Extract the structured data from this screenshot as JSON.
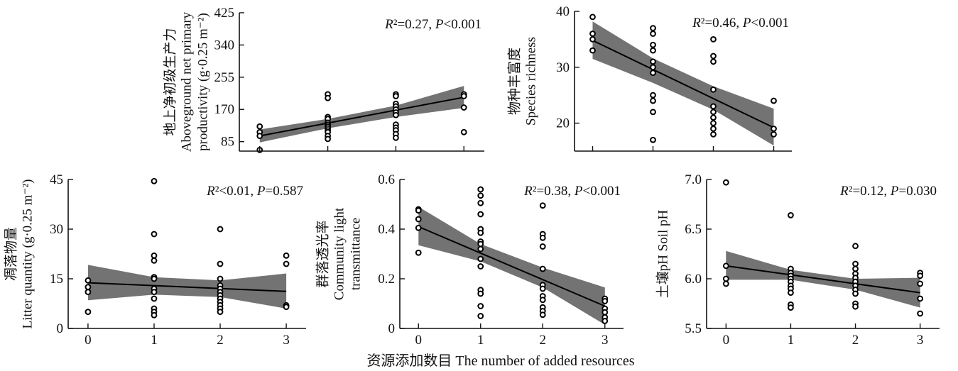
{
  "figure": {
    "xlabel": "资源添加数目 The number of added resources"
  },
  "chart_data": [
    {
      "type": "scatter",
      "key": "anpp",
      "ylabel_lines": [
        "地上净初级生产力",
        "Aboveground net primary",
        "productivity (g·0.25 m⁻²)"
      ],
      "stat_text": "R²=0.27, P<0.001",
      "x_ticks": [
        0,
        1,
        2,
        3
      ],
      "x_tick_labels": [],
      "y_ticks": [
        85,
        170,
        255,
        340,
        425
      ],
      "xlim": [
        -0.3,
        3.3
      ],
      "ylim": [
        60,
        425
      ],
      "points": [
        [
          0,
          125
        ],
        [
          0,
          110
        ],
        [
          0,
          100
        ],
        [
          0,
          63
        ],
        [
          1,
          210
        ],
        [
          1,
          200
        ],
        [
          1,
          150
        ],
        [
          1,
          145
        ],
        [
          1,
          135
        ],
        [
          1,
          130
        ],
        [
          1,
          125
        ],
        [
          1,
          120
        ],
        [
          1,
          115
        ],
        [
          1,
          110
        ],
        [
          1,
          100
        ],
        [
          1,
          92
        ],
        [
          2,
          210
        ],
        [
          2,
          205
        ],
        [
          2,
          185
        ],
        [
          2,
          178
        ],
        [
          2,
          170
        ],
        [
          2,
          162
        ],
        [
          2,
          155
        ],
        [
          2,
          130
        ],
        [
          2,
          122
        ],
        [
          2,
          115
        ],
        [
          2,
          105
        ],
        [
          2,
          95
        ],
        [
          3,
          210
        ],
        [
          3,
          205
        ],
        [
          3,
          175
        ],
        [
          3,
          110
        ]
      ],
      "fit": [
        [
          0,
          100
        ],
        [
          3,
          202
        ]
      ],
      "ci_lower": [
        [
          0,
          83
        ],
        [
          1,
          120
        ],
        [
          2,
          150
        ],
        [
          3,
          174
        ]
      ],
      "ci_upper": [
        [
          0,
          117
        ],
        [
          1,
          145
        ],
        [
          2,
          180
        ],
        [
          3,
          232
        ]
      ]
    },
    {
      "type": "scatter",
      "key": "richness",
      "ylabel_lines": [
        "物种丰富度",
        "Species richness"
      ],
      "stat_text": "R²=0.46, P<0.001",
      "x_ticks": [
        0,
        1,
        2,
        3
      ],
      "x_tick_labels": [],
      "y_ticks": [
        20,
        30,
        40
      ],
      "xlim": [
        -0.3,
        3.3
      ],
      "ylim": [
        15,
        40
      ],
      "points": [
        [
          0,
          39
        ],
        [
          0,
          36
        ],
        [
          0,
          35
        ],
        [
          0,
          33
        ],
        [
          1,
          37
        ],
        [
          1,
          36
        ],
        [
          1,
          34
        ],
        [
          1,
          33
        ],
        [
          1,
          31
        ],
        [
          1,
          30
        ],
        [
          1,
          29
        ],
        [
          1,
          25
        ],
        [
          1,
          24
        ],
        [
          1,
          22
        ],
        [
          1,
          17
        ],
        [
          2,
          35
        ],
        [
          2,
          32
        ],
        [
          2,
          31
        ],
        [
          2,
          26
        ],
        [
          2,
          23
        ],
        [
          2,
          22
        ],
        [
          2,
          21
        ],
        [
          2,
          20
        ],
        [
          2,
          19
        ],
        [
          2,
          18
        ],
        [
          3,
          24
        ],
        [
          3,
          19
        ],
        [
          3,
          18
        ]
      ],
      "fit": [
        [
          0,
          34.8
        ],
        [
          3,
          19.2
        ]
      ],
      "ci_lower": [
        [
          0,
          31.5
        ],
        [
          1,
          27.2
        ],
        [
          2,
          22.4
        ],
        [
          3,
          16
        ]
      ],
      "ci_upper": [
        [
          0,
          38.2
        ],
        [
          1,
          31.6
        ],
        [
          2,
          26.6
        ],
        [
          3,
          22.6
        ]
      ]
    },
    {
      "type": "scatter",
      "key": "litter",
      "ylabel_lines": [
        "凋落物量",
        "Litter quantity (g·0.25 m⁻²)"
      ],
      "stat_text": "R²<0.01, P=0.587",
      "x_ticks": [
        0,
        1,
        2,
        3
      ],
      "x_tick_labels": [
        "0",
        "1",
        "2",
        "3"
      ],
      "y_ticks": [
        0,
        15,
        30,
        45
      ],
      "xlim": [
        -0.3,
        3.3
      ],
      "ylim": [
        0,
        45
      ],
      "points": [
        [
          0,
          14.5
        ],
        [
          0,
          12.5
        ],
        [
          0,
          11
        ],
        [
          0,
          5
        ],
        [
          1,
          44.5
        ],
        [
          1,
          28.5
        ],
        [
          1,
          22
        ],
        [
          1,
          20.5
        ],
        [
          1,
          15.5
        ],
        [
          1,
          15
        ],
        [
          1,
          12
        ],
        [
          1,
          11
        ],
        [
          1,
          9
        ],
        [
          1,
          6
        ],
        [
          1,
          5
        ],
        [
          1,
          4
        ],
        [
          2,
          30
        ],
        [
          2,
          19.5
        ],
        [
          2,
          15
        ],
        [
          2,
          13
        ],
        [
          2,
          12
        ],
        [
          2,
          11
        ],
        [
          2,
          10
        ],
        [
          2,
          9
        ],
        [
          2,
          8
        ],
        [
          2,
          7
        ],
        [
          2,
          6
        ],
        [
          2,
          5
        ],
        [
          3,
          22
        ],
        [
          3,
          19.5
        ],
        [
          3,
          7
        ],
        [
          3,
          6.5
        ]
      ],
      "fit": [
        [
          0,
          13.8
        ],
        [
          3,
          11.2
        ]
      ],
      "ci_lower": [
        [
          0,
          8.5
        ],
        [
          1,
          10.2
        ],
        [
          2,
          9.5
        ],
        [
          3,
          6
        ]
      ],
      "ci_upper": [
        [
          0,
          19.2
        ],
        [
          1,
          15.5
        ],
        [
          2,
          14.5
        ],
        [
          3,
          16.6
        ]
      ]
    },
    {
      "type": "scatter",
      "key": "light",
      "ylabel_lines": [
        "群落透光率",
        "Community light",
        "transmittance"
      ],
      "stat_text": "R²=0.38, P<0.001",
      "x_ticks": [
        0,
        1,
        2,
        3
      ],
      "x_tick_labels": [
        "0",
        "1",
        "2",
        "3"
      ],
      "y_ticks": [
        0,
        0.2,
        0.4,
        0.6
      ],
      "y_tick_labels": [
        "0",
        "0.2",
        "0.4",
        "0.6"
      ],
      "xlim": [
        -0.3,
        3.3
      ],
      "ylim": [
        0,
        0.6
      ],
      "points": [
        [
          0,
          0.48
        ],
        [
          0,
          0.475
        ],
        [
          0,
          0.44
        ],
        [
          0,
          0.405
        ],
        [
          0,
          0.305
        ],
        [
          1,
          0.56
        ],
        [
          1,
          0.535
        ],
        [
          1,
          0.505
        ],
        [
          1,
          0.46
        ],
        [
          1,
          0.4
        ],
        [
          1,
          0.385
        ],
        [
          1,
          0.35
        ],
        [
          1,
          0.34
        ],
        [
          1,
          0.32
        ],
        [
          1,
          0.28
        ],
        [
          1,
          0.25
        ],
        [
          1,
          0.155
        ],
        [
          1,
          0.14
        ],
        [
          1,
          0.09
        ],
        [
          1,
          0.05
        ],
        [
          2,
          0.495
        ],
        [
          2,
          0.38
        ],
        [
          2,
          0.365
        ],
        [
          2,
          0.33
        ],
        [
          2,
          0.24
        ],
        [
          2,
          0.175
        ],
        [
          2,
          0.16
        ],
        [
          2,
          0.13
        ],
        [
          2,
          0.115
        ],
        [
          2,
          0.085
        ],
        [
          2,
          0.07
        ],
        [
          2,
          0.055
        ],
        [
          3,
          0.12
        ],
        [
          3,
          0.11
        ],
        [
          3,
          0.08
        ],
        [
          3,
          0.065
        ],
        [
          3,
          0.045
        ],
        [
          3,
          0.03
        ]
      ],
      "fit": [
        [
          0,
          0.41
        ],
        [
          3,
          0.09
        ]
      ],
      "ci_lower": [
        [
          0,
          0.335
        ],
        [
          1,
          0.27
        ],
        [
          2,
          0.165
        ],
        [
          3,
          0.015
        ]
      ],
      "ci_upper": [
        [
          0,
          0.49
        ],
        [
          1,
          0.34
        ],
        [
          2,
          0.245
        ],
        [
          3,
          0.165
        ]
      ]
    },
    {
      "type": "scatter",
      "key": "ph",
      "ylabel_lines": [
        "土壤pH Soil pH"
      ],
      "stat_text": "R²=0.12, P=0.030",
      "x_ticks": [
        0,
        1,
        2,
        3
      ],
      "x_tick_labels": [
        "0",
        "1",
        "2",
        "3"
      ],
      "y_ticks": [
        5.5,
        6.0,
        6.5,
        7.0
      ],
      "y_tick_labels": [
        "5.5",
        "6.0",
        "6.5",
        "7.0"
      ],
      "xlim": [
        -0.3,
        3.3
      ],
      "ylim": [
        5.5,
        7.0
      ],
      "points": [
        [
          0,
          6.97
        ],
        [
          0,
          6.13
        ],
        [
          0,
          6.0
        ],
        [
          0,
          5.95
        ],
        [
          1,
          6.64
        ],
        [
          1,
          6.1
        ],
        [
          1,
          6.06
        ],
        [
          1,
          6.03
        ],
        [
          1,
          6.0
        ],
        [
          1,
          5.97
        ],
        [
          1,
          5.93
        ],
        [
          1,
          5.9
        ],
        [
          1,
          5.86
        ],
        [
          1,
          5.74
        ],
        [
          1,
          5.71
        ],
        [
          2,
          6.33
        ],
        [
          2,
          6.15
        ],
        [
          2,
          6.1
        ],
        [
          2,
          6.05
        ],
        [
          2,
          6.01
        ],
        [
          2,
          5.97
        ],
        [
          2,
          5.93
        ],
        [
          2,
          5.89
        ],
        [
          2,
          5.85
        ],
        [
          2,
          5.75
        ],
        [
          2,
          5.72
        ],
        [
          3,
          6.06
        ],
        [
          3,
          6.03
        ],
        [
          3,
          5.95
        ],
        [
          3,
          5.8
        ],
        [
          3,
          5.65
        ]
      ],
      "fit": [
        [
          0,
          6.13
        ],
        [
          3,
          5.86
        ]
      ],
      "ci_lower": [
        [
          0,
          5.99
        ],
        [
          1,
          5.99
        ],
        [
          2,
          5.89
        ],
        [
          3,
          5.71
        ]
      ],
      "ci_upper": [
        [
          0,
          6.28
        ],
        [
          1,
          6.09
        ],
        [
          2,
          6.0
        ],
        [
          3,
          6.01
        ]
      ]
    }
  ]
}
